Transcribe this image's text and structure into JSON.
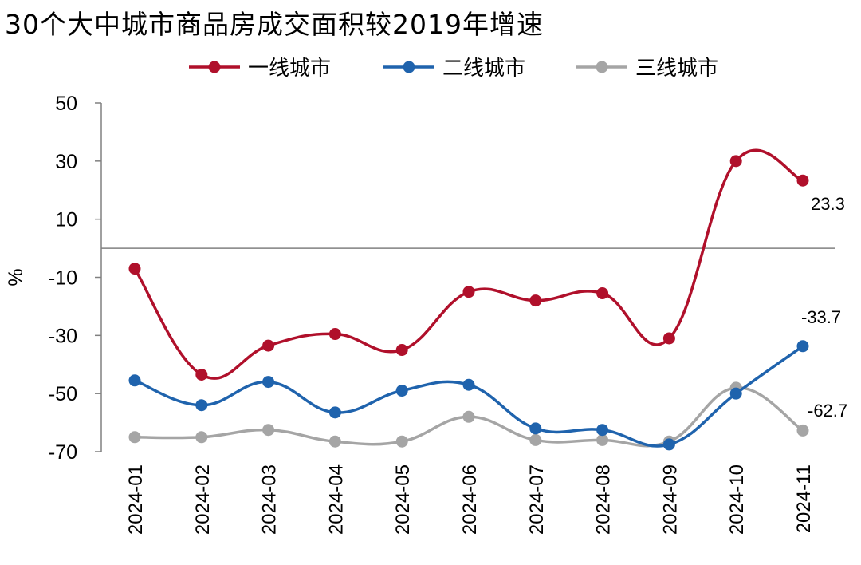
{
  "title": "30个大中城市商品房成交面积较2019年增速",
  "chart_data": {
    "type": "line",
    "title": "30个大中城市商品房成交面积较2019年增速",
    "ylabel": "%",
    "xlabel": "",
    "ylim": [
      -70,
      50
    ],
    "yticks": [
      50,
      30,
      10,
      -10,
      -30,
      -50,
      -70
    ],
    "zero_line": true,
    "legend_position": "top",
    "categories": [
      "2024-01",
      "2024-02",
      "2024-03",
      "2024-04",
      "2024-05",
      "2024-06",
      "2024-07",
      "2024-08",
      "2024-09",
      "2024-10",
      "2024-11"
    ],
    "series": [
      {
        "name": "一线城市",
        "color": "#b0102b",
        "values": [
          -7.0,
          -43.5,
          -33.5,
          -29.5,
          -35.0,
          -15.0,
          -18.0,
          -15.5,
          -31.0,
          30.0,
          23.3
        ],
        "end_label": "23.3"
      },
      {
        "name": "二线城市",
        "color": "#1f63ad",
        "values": [
          -45.5,
          -54.0,
          -46.0,
          -56.5,
          -49.0,
          -47.0,
          -62.0,
          -62.5,
          -67.5,
          -50.0,
          -33.7
        ],
        "end_label": "-33.7"
      },
      {
        "name": "三线城市",
        "color": "#a5a5a5",
        "values": [
          -65.0,
          -65.0,
          -62.5,
          -66.5,
          -66.5,
          -58.0,
          -66.0,
          -66.0,
          -66.5,
          -48.0,
          -62.7
        ],
        "end_label": "-62.7"
      }
    ]
  }
}
